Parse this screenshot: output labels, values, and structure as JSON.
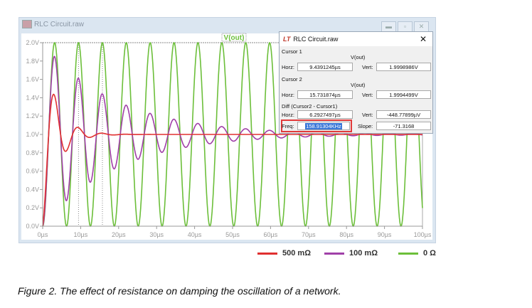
{
  "window": {
    "title": "RLC Circuit.raw",
    "buttons": [
      "minimize",
      "restore",
      "close"
    ]
  },
  "trace_label": "V(out)",
  "dialog": {
    "title": "RLC Circuit.raw",
    "logo": "LT",
    "cursor1": {
      "label": "Cursor 1",
      "trace": "V(out)",
      "horz_label": "Horz:",
      "horz": "9.4391245µs",
      "vert_label": "Vert:",
      "vert": "1.9998986V"
    },
    "cursor2": {
      "label": "Cursor 2",
      "trace": "V(out)",
      "horz_label": "Horz:",
      "horz": "15.731874µs",
      "vert_label": "Vert:",
      "vert": "1.9994499V"
    },
    "diff": {
      "label": "Diff (Cursor2 - Cursor1)",
      "horz_label": "Horz:",
      "horz": "6.2927497µs",
      "vert_label": "Vert:",
      "vert": "-448.77899µV",
      "freq_label": "Freq:",
      "freq": "158.91304KHz",
      "slope_label": "Slope:",
      "slope": "-71.3168"
    }
  },
  "caption": "Figure 2. The effect of resistance on damping the oscillation of a network.",
  "chart_data": {
    "type": "line",
    "title": "V(out)",
    "xlabel": "",
    "ylabel": "",
    "xlim": [
      0,
      100
    ],
    "ylim": [
      0,
      2.0
    ],
    "x_ticks": [
      "0µs",
      "10µs",
      "20µs",
      "30µs",
      "40µs",
      "50µs",
      "60µs",
      "70µs",
      "80µs",
      "90µs",
      "100µs"
    ],
    "y_ticks": [
      "0.0V",
      "0.2V",
      "0.4V",
      "0.6V",
      "0.8V",
      "1.0V",
      "1.2V",
      "1.4V",
      "1.6V",
      "1.8V",
      "2.0V"
    ],
    "period_us": 6.29,
    "cursors_us": [
      9.44,
      15.73
    ],
    "legend_position": "bottom-right",
    "series": [
      {
        "name": "500 mΩ",
        "color": "#e03030",
        "model": "1 - exp(-a t) cos(2π t / T)",
        "damping_per_us": 0.275
      },
      {
        "name": "100 mΩ",
        "color": "#a040a8",
        "model": "1 - exp(-a t) cos(2π t / T)",
        "damping_per_us": 0.052
      },
      {
        "name": "0 Ω",
        "color": "#6cbf3a",
        "model": "1 - cos(2π t / T)",
        "damping_per_us": 0
      }
    ]
  }
}
